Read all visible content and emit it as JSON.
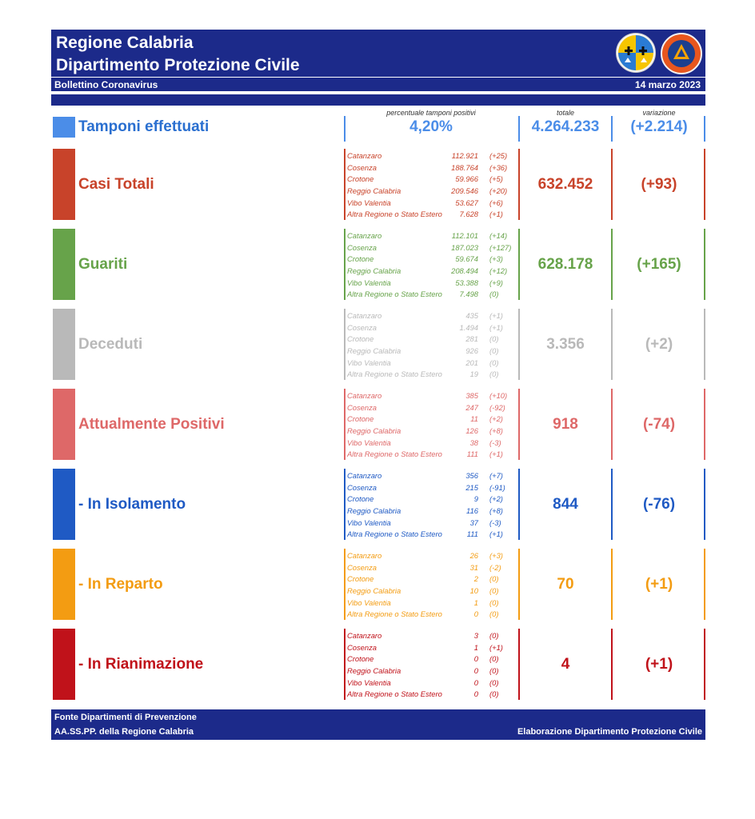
{
  "header": {
    "title_line1": "Regione Calabria",
    "title_line2": "Dipartimento Protezione Civile",
    "bulletin": "Bollettino Coronavirus",
    "date": "14 marzo 2023"
  },
  "column_headers": {
    "pct_label": "percentuale tamponi positivi",
    "total_label": "totale",
    "variation_label": "variazione"
  },
  "tamponi": {
    "label": "Tamponi effettuati",
    "percent": "4,20%",
    "total": "4.264.233",
    "variation": "(+2.214)",
    "color": "#4b8de8"
  },
  "sections": [
    {
      "label": "Casi Totali",
      "color": "#c8432a",
      "total": "632.452",
      "variation": "(+93)",
      "rows": [
        {
          "name": "Catanzaro",
          "value": "112.921",
          "delta": "(+25)"
        },
        {
          "name": "Cosenza",
          "value": "188.764",
          "delta": "(+36)"
        },
        {
          "name": "Crotone",
          "value": "59.966",
          "delta": "(+5)"
        },
        {
          "name": "Reggio Calabria",
          "value": "209.546",
          "delta": "(+20)"
        },
        {
          "name": "Vibo Valentia",
          "value": "53.627",
          "delta": "(+6)"
        },
        {
          "name": "Altra Regione o Stato Estero",
          "value": "7.628",
          "delta": "(+1)"
        }
      ]
    },
    {
      "label": "Guariti",
      "color": "#67a34a",
      "total": "628.178",
      "variation": "(+165)",
      "rows": [
        {
          "name": "Catanzaro",
          "value": "112.101",
          "delta": "(+14)"
        },
        {
          "name": "Cosenza",
          "value": "187.023",
          "delta": "(+127)"
        },
        {
          "name": "Crotone",
          "value": "59.674",
          "delta": "(+3)"
        },
        {
          "name": "Reggio Calabria",
          "value": "208.494",
          "delta": "(+12)"
        },
        {
          "name": "Vibo Valentia",
          "value": "53.388",
          "delta": "(+9)"
        },
        {
          "name": "Altra Regione o Stato Estero",
          "value": "7.498",
          "delta": "(0)"
        }
      ]
    },
    {
      "label": "Deceduti",
      "color": "#b9b9b9",
      "total": "3.356",
      "variation": "(+2)",
      "rows": [
        {
          "name": "Catanzaro",
          "value": "435",
          "delta": "(+1)"
        },
        {
          "name": "Cosenza",
          "value": "1.494",
          "delta": "(+1)"
        },
        {
          "name": "Crotone",
          "value": "281",
          "delta": "(0)"
        },
        {
          "name": "Reggio Calabria",
          "value": "926",
          "delta": "(0)"
        },
        {
          "name": "Vibo Valentia",
          "value": "201",
          "delta": "(0)"
        },
        {
          "name": "Altra Regione o Stato Estero",
          "value": "19",
          "delta": "(0)"
        }
      ]
    },
    {
      "label": "Attualmente Positivi",
      "color": "#de6868",
      "total": "918",
      "variation": "(-74)",
      "rows": [
        {
          "name": "Catanzaro",
          "value": "385",
          "delta": "(+10)"
        },
        {
          "name": "Cosenza",
          "value": "247",
          "delta": "(-92)"
        },
        {
          "name": "Crotone",
          "value": "11",
          "delta": "(+2)"
        },
        {
          "name": "Reggio Calabria",
          "value": "126",
          "delta": "(+8)"
        },
        {
          "name": "Vibo Valentia",
          "value": "38",
          "delta": "(-3)"
        },
        {
          "name": "Altra Regione o Stato Estero",
          "value": "111",
          "delta": "(+1)"
        }
      ]
    },
    {
      "label": "- In Isolamento",
      "color": "#1f5ac4",
      "total": "844",
      "variation": "(-76)",
      "rows": [
        {
          "name": "Catanzaro",
          "value": "356",
          "delta": "(+7)"
        },
        {
          "name": "Cosenza",
          "value": "215",
          "delta": "(-91)"
        },
        {
          "name": "Crotone",
          "value": "9",
          "delta": "(+2)"
        },
        {
          "name": "Reggio Calabria",
          "value": "116",
          "delta": "(+8)"
        },
        {
          "name": "Vibo Valentia",
          "value": "37",
          "delta": "(-3)"
        },
        {
          "name": "Altra Regione o Stato Estero",
          "value": "111",
          "delta": "(+1)"
        }
      ]
    },
    {
      "label": "- In Reparto",
      "color": "#f39c12",
      "total": "70",
      "variation": "(+1)",
      "rows": [
        {
          "name": "Catanzaro",
          "value": "26",
          "delta": "(+3)"
        },
        {
          "name": "Cosenza",
          "value": "31",
          "delta": "(-2)"
        },
        {
          "name": "Crotone",
          "value": "2",
          "delta": "(0)"
        },
        {
          "name": "Reggio Calabria",
          "value": "10",
          "delta": "(0)"
        },
        {
          "name": "Vibo Valentia",
          "value": "1",
          "delta": "(0)"
        },
        {
          "name": "Altra Regione o Stato Estero",
          "value": "0",
          "delta": "(0)"
        }
      ]
    },
    {
      "label": "- In Rianimazione",
      "color": "#c0121a",
      "total": "4",
      "variation": "(+1)",
      "rows": [
        {
          "name": "Catanzaro",
          "value": "3",
          "delta": "(0)"
        },
        {
          "name": "Cosenza",
          "value": "1",
          "delta": "(+1)"
        },
        {
          "name": "Crotone",
          "value": "0",
          "delta": "(0)"
        },
        {
          "name": "Reggio Calabria",
          "value": "0",
          "delta": "(0)"
        },
        {
          "name": "Vibo Valentia",
          "value": "0",
          "delta": "(0)"
        },
        {
          "name": "Altra Regione o Stato Estero",
          "value": "0",
          "delta": "(0)"
        }
      ]
    }
  ],
  "footer": {
    "line1": "Fonte Dipartimenti di Prevenzione",
    "line2": "AA.SS.PP. della Regione Calabria",
    "credit": "Elaborazione Dipartimento Protezione Civile"
  }
}
